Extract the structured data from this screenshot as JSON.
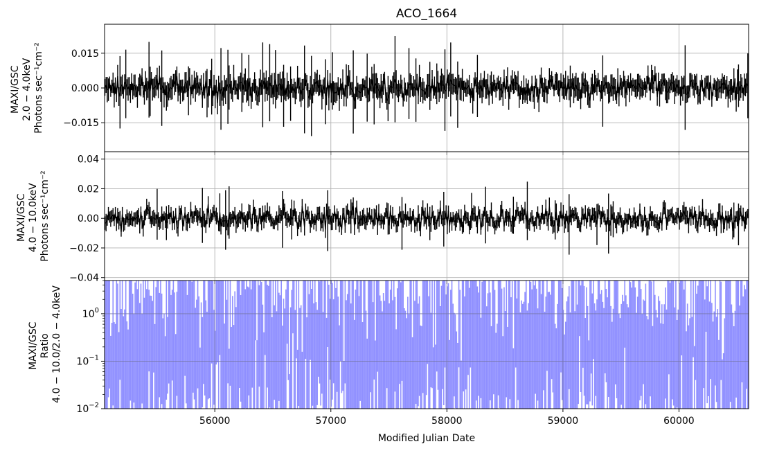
{
  "chart_data": {
    "title": "ACO_1664",
    "type": "scatter",
    "xlabel": "Modified Julian Date",
    "xlim": [
      55050,
      60600
    ],
    "x_ticks": [
      {
        "value": 56000,
        "label": "56000"
      },
      {
        "value": 57000,
        "label": "57000"
      },
      {
        "value": 58000,
        "label": "58000"
      },
      {
        "value": 59000,
        "label": "59000"
      },
      {
        "value": 60000,
        "label": "60000"
      }
    ],
    "grid": true,
    "panels": [
      {
        "name": "soft",
        "ylabel": [
          "MAXI/GSC",
          "2.0 − 4.0keV",
          "Photons sec⁻¹cm⁻²"
        ],
        "ylim": [
          -0.0275,
          0.0275
        ],
        "yscale": "linear",
        "y_ticks": [
          {
            "value": 0.015,
            "label": "0.015"
          },
          {
            "value": 0.0,
            "label": "0.000"
          },
          {
            "value": -0.015,
            "label": "−0.015"
          }
        ],
        "series": [
          {
            "color": "#000000",
            "style": "errorbar",
            "cadence_days": 10
          }
        ]
      },
      {
        "name": "hard",
        "ylabel": [
          "MAXI/GSC",
          "4.0 − 10.0keV",
          "Photons sec⁻¹cm⁻²"
        ],
        "ylim": [
          -0.042,
          0.045
        ],
        "yscale": "linear",
        "y_ticks": [
          {
            "value": 0.04,
            "label": "0.04"
          },
          {
            "value": 0.02,
            "label": "0.02"
          },
          {
            "value": 0.0,
            "label": "0.00"
          },
          {
            "value": -0.02,
            "label": "−0.02"
          },
          {
            "value": -0.04,
            "label": "−0.04"
          }
        ],
        "series": [
          {
            "color": "#000000",
            "style": "errorbar",
            "cadence_days": 10
          }
        ]
      },
      {
        "name": "ratio",
        "ylabel": [
          "MAXI/GSC",
          "Ratio",
          "4.0 − 10.0/2.0 − 4.0keV"
        ],
        "ylim": [
          0.01,
          5
        ],
        "yscale": "log",
        "y_ticks": [
          {
            "value": 1,
            "base": "10",
            "exp": "0"
          },
          {
            "value": 0.1,
            "base": "10",
            "exp": "−1"
          },
          {
            "value": 0.01,
            "base": "10",
            "exp": "−2"
          }
        ],
        "series": [
          {
            "color": "#3333ff",
            "style": "errorbar",
            "cadence_days": 10
          }
        ]
      }
    ]
  }
}
